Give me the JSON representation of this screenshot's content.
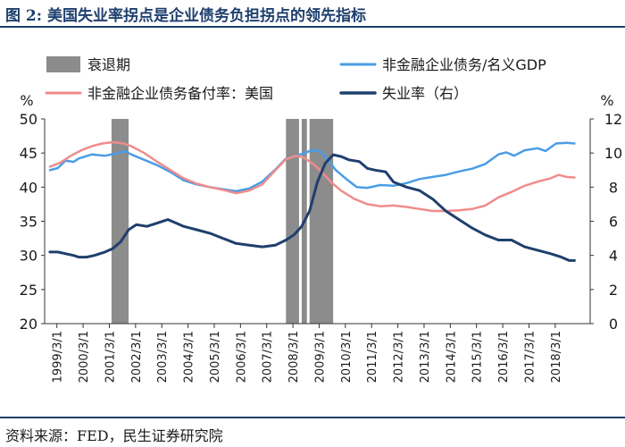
{
  "figure": {
    "title": "图 2:  美国失业率拐点是企业债务负担拐点的领先指标",
    "source": "资料来源：FED，民生证券研究院"
  },
  "chart_data": {
    "type": "line",
    "left_axis_unit": "%",
    "right_axis_unit": "%",
    "ylim_left": [
      20,
      50
    ],
    "yticks_left": [
      20,
      25,
      30,
      35,
      40,
      45,
      50
    ],
    "ylim_right": [
      0,
      12
    ],
    "yticks_right": [
      0,
      2,
      4,
      6,
      8,
      10,
      12
    ],
    "xlim": [
      1998.7,
      2019.5
    ],
    "x_tick_labels": [
      "1999/3/1",
      "2000/3/1",
      "2001/3/1",
      "2002/3/1",
      "2003/3/1",
      "2004/3/1",
      "2005/3/1",
      "2006/3/1",
      "2007/3/1",
      "2008/3/1",
      "2009/3/1",
      "2010/3/1",
      "2011/3/1",
      "2012/3/1",
      "2013/3/1",
      "2014/3/1",
      "2015/3/1",
      "2016/3/1",
      "2017/3/1",
      "2018/3/1"
    ],
    "legend_position": "top",
    "recessions": [
      {
        "name": "衰退期",
        "start": 2001.25,
        "end": 2001.9
      },
      {
        "name": "衰退期",
        "start": 2007.9,
        "end": 2008.4
      },
      {
        "name": "衰退期",
        "start": 2008.5,
        "end": 2008.7
      },
      {
        "name": "衰退期",
        "start": 2008.8,
        "end": 2009.7
      }
    ],
    "series": [
      {
        "name": "非金融企业债务/名义GDP",
        "axis": "left",
        "color": "#4a9de6",
        "points": [
          [
            1998.9,
            42.5
          ],
          [
            1999.2,
            42.8
          ],
          [
            1999.5,
            43.9
          ],
          [
            1999.8,
            43.7
          ],
          [
            2000.0,
            44.2
          ],
          [
            2000.5,
            44.8
          ],
          [
            2001.0,
            44.6
          ],
          [
            2001.5,
            45.0
          ],
          [
            2001.75,
            45.3
          ],
          [
            2002.0,
            44.8
          ],
          [
            2002.5,
            44.0
          ],
          [
            2003.0,
            43.2
          ],
          [
            2003.5,
            42.2
          ],
          [
            2004.0,
            41.0
          ],
          [
            2004.5,
            40.4
          ],
          [
            2005.0,
            40.0
          ],
          [
            2005.5,
            39.7
          ],
          [
            2006.0,
            39.4
          ],
          [
            2006.5,
            39.8
          ],
          [
            2007.0,
            40.8
          ],
          [
            2007.5,
            42.6
          ],
          [
            2007.9,
            44.2
          ],
          [
            2008.3,
            44.6
          ],
          [
            2008.6,
            45.0
          ],
          [
            2008.9,
            45.4
          ],
          [
            2009.2,
            45.3
          ],
          [
            2009.5,
            44.0
          ],
          [
            2009.8,
            42.5
          ],
          [
            2010.2,
            41.2
          ],
          [
            2010.6,
            40.0
          ],
          [
            2011.0,
            39.9
          ],
          [
            2011.5,
            40.3
          ],
          [
            2012.0,
            40.2
          ],
          [
            2012.5,
            40.6
          ],
          [
            2013.0,
            41.2
          ],
          [
            2013.5,
            41.5
          ],
          [
            2014.0,
            41.8
          ],
          [
            2014.5,
            42.3
          ],
          [
            2015.0,
            42.7
          ],
          [
            2015.5,
            43.4
          ],
          [
            2016.0,
            44.8
          ],
          [
            2016.3,
            45.1
          ],
          [
            2016.6,
            44.6
          ],
          [
            2017.0,
            45.4
          ],
          [
            2017.5,
            45.7
          ],
          [
            2017.8,
            45.3
          ],
          [
            2018.2,
            46.4
          ],
          [
            2018.6,
            46.5
          ],
          [
            2018.9,
            46.4
          ]
        ]
      },
      {
        "name": "非金融企业债务备付率：美国",
        "axis": "left",
        "color": "#f08c8c",
        "points": [
          [
            1998.9,
            43.0
          ],
          [
            1999.3,
            43.6
          ],
          [
            1999.7,
            44.6
          ],
          [
            2000.1,
            45.4
          ],
          [
            2000.5,
            46.0
          ],
          [
            2000.9,
            46.4
          ],
          [
            2001.3,
            46.6
          ],
          [
            2001.7,
            46.4
          ],
          [
            2002.0,
            46.0
          ],
          [
            2002.5,
            45.0
          ],
          [
            2003.0,
            43.7
          ],
          [
            2003.5,
            42.5
          ],
          [
            2004.0,
            41.3
          ],
          [
            2004.5,
            40.5
          ],
          [
            2005.0,
            40.0
          ],
          [
            2005.5,
            39.6
          ],
          [
            2006.0,
            39.1
          ],
          [
            2006.5,
            39.5
          ],
          [
            2007.0,
            40.4
          ],
          [
            2007.5,
            42.5
          ],
          [
            2007.9,
            44.1
          ],
          [
            2008.3,
            44.6
          ],
          [
            2008.6,
            44.3
          ],
          [
            2008.9,
            43.5
          ],
          [
            2009.2,
            42.5
          ],
          [
            2009.6,
            40.8
          ],
          [
            2010.0,
            39.5
          ],
          [
            2010.5,
            38.3
          ],
          [
            2011.0,
            37.5
          ],
          [
            2011.5,
            37.2
          ],
          [
            2012.0,
            37.3
          ],
          [
            2012.5,
            37.1
          ],
          [
            2013.0,
            36.8
          ],
          [
            2013.5,
            36.5
          ],
          [
            2014.0,
            36.5
          ],
          [
            2014.5,
            36.6
          ],
          [
            2015.0,
            36.8
          ],
          [
            2015.5,
            37.3
          ],
          [
            2016.0,
            38.5
          ],
          [
            2016.5,
            39.3
          ],
          [
            2017.0,
            40.2
          ],
          [
            2017.5,
            40.8
          ],
          [
            2018.0,
            41.3
          ],
          [
            2018.3,
            41.8
          ],
          [
            2018.6,
            41.5
          ],
          [
            2018.9,
            41.4
          ]
        ]
      },
      {
        "name": "失业率（右）",
        "axis": "right",
        "color": "#1f3f6e",
        "points": [
          [
            1998.9,
            4.2
          ],
          [
            1999.2,
            4.2
          ],
          [
            1999.5,
            4.1
          ],
          [
            1999.8,
            4.0
          ],
          [
            2000.0,
            3.9
          ],
          [
            2000.3,
            3.9
          ],
          [
            2000.6,
            4.0
          ],
          [
            2001.0,
            4.2
          ],
          [
            2001.3,
            4.4
          ],
          [
            2001.6,
            4.8
          ],
          [
            2001.9,
            5.5
          ],
          [
            2002.2,
            5.8
          ],
          [
            2002.6,
            5.7
          ],
          [
            2003.0,
            5.9
          ],
          [
            2003.4,
            6.1
          ],
          [
            2003.7,
            5.9
          ],
          [
            2004.0,
            5.7
          ],
          [
            2004.5,
            5.5
          ],
          [
            2005.0,
            5.3
          ],
          [
            2005.5,
            5.0
          ],
          [
            2006.0,
            4.7
          ],
          [
            2006.5,
            4.6
          ],
          [
            2007.0,
            4.5
          ],
          [
            2007.5,
            4.6
          ],
          [
            2007.9,
            4.9
          ],
          [
            2008.2,
            5.2
          ],
          [
            2008.5,
            5.7
          ],
          [
            2008.8,
            6.6
          ],
          [
            2009.1,
            8.3
          ],
          [
            2009.4,
            9.4
          ],
          [
            2009.7,
            9.9
          ],
          [
            2010.0,
            9.8
          ],
          [
            2010.3,
            9.6
          ],
          [
            2010.7,
            9.5
          ],
          [
            2011.0,
            9.1
          ],
          [
            2011.3,
            9.0
          ],
          [
            2011.7,
            8.9
          ],
          [
            2012.0,
            8.3
          ],
          [
            2012.5,
            8.0
          ],
          [
            2013.0,
            7.8
          ],
          [
            2013.5,
            7.3
          ],
          [
            2014.0,
            6.6
          ],
          [
            2014.5,
            6.1
          ],
          [
            2015.0,
            5.6
          ],
          [
            2015.5,
            5.2
          ],
          [
            2016.0,
            4.9
          ],
          [
            2016.5,
            4.9
          ],
          [
            2017.0,
            4.5
          ],
          [
            2017.5,
            4.3
          ],
          [
            2018.0,
            4.1
          ],
          [
            2018.4,
            3.9
          ],
          [
            2018.7,
            3.7
          ],
          [
            2018.9,
            3.7
          ]
        ]
      }
    ]
  }
}
